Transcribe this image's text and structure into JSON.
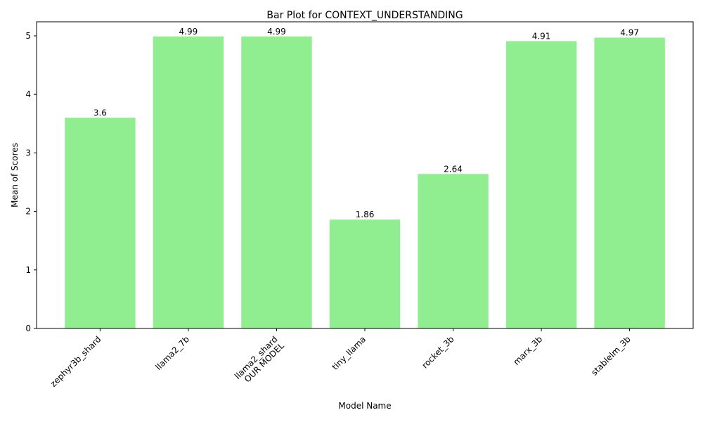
{
  "chart_data": {
    "type": "bar",
    "title": "Bar Plot for CONTEXT_UNDERSTANDING",
    "xlabel": "Model Name",
    "ylabel": "Mean of Scores",
    "categories": [
      "zephyr3b_shard",
      "llama2_7b",
      "llama2_shard\nOUR MODEL",
      "tiny_llama",
      "rocket_3b",
      "marx_3b",
      "stablelm_3b"
    ],
    "values": [
      3.6,
      4.99,
      4.99,
      1.86,
      2.64,
      4.91,
      4.97
    ],
    "value_labels": [
      "3.6",
      "4.99",
      "4.99",
      "1.86",
      "2.64",
      "4.91",
      "4.97"
    ],
    "yticks": [
      0,
      1,
      2,
      3,
      4,
      5
    ],
    "ylim": [
      0,
      5.24
    ],
    "grid": false,
    "bar_color": "#90ee90",
    "xtick_rotation": 45
  }
}
